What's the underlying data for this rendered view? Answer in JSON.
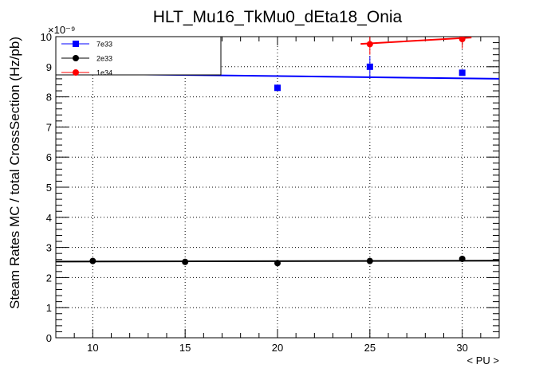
{
  "chart_data": {
    "type": "scatter",
    "title": "HLT_Mu16_TkMu0_dEta18_Onia",
    "xlabel": "< PU >",
    "ylabel": "Steam Rates MC / total CrossSection (Hz/pb)",
    "y_exponent": "×10⁻⁹",
    "xlim": [
      8,
      32
    ],
    "ylim": [
      0,
      10
    ],
    "x_ticks": [
      "10",
      "15",
      "20",
      "25",
      "30"
    ],
    "y_ticks": [
      "0",
      "1",
      "2",
      "3",
      "4",
      "5",
      "6",
      "7",
      "8",
      "9",
      "10"
    ],
    "grid": true,
    "legend_position": "top-left",
    "series": [
      {
        "name": "7e33",
        "color": "#0000ff",
        "marker": "square",
        "points": [
          {
            "x": 20,
            "y": 8.3,
            "err": 0.0
          },
          {
            "x": 25,
            "y": 9.0,
            "err": 0.35
          },
          {
            "x": 30,
            "y": 8.8,
            "err": 0.0
          }
        ],
        "fit": {
          "x": [
            8,
            32
          ],
          "y": [
            8.78,
            8.6
          ]
        }
      },
      {
        "name": "2e33",
        "color": "#000000",
        "marker": "circle",
        "points": [
          {
            "x": 10,
            "y": 2.55,
            "err": 0.0
          },
          {
            "x": 15,
            "y": 2.52,
            "err": 0.0
          },
          {
            "x": 20,
            "y": 2.48,
            "err": 0.0
          },
          {
            "x": 25,
            "y": 2.55,
            "err": 0.0
          },
          {
            "x": 30,
            "y": 2.62,
            "err": 0.0
          }
        ],
        "fit": {
          "x": [
            8,
            32
          ],
          "y": [
            2.53,
            2.56
          ]
        }
      },
      {
        "name": "1e34",
        "color": "#ff0000",
        "marker": "circle",
        "points": [
          {
            "x": 25,
            "y": 9.75,
            "err": 0.35
          },
          {
            "x": 30,
            "y": 9.92,
            "err": 0.32
          }
        ],
        "fit": {
          "x": [
            24.5,
            30.5
          ],
          "y": [
            9.76,
            9.97
          ]
        }
      }
    ]
  }
}
